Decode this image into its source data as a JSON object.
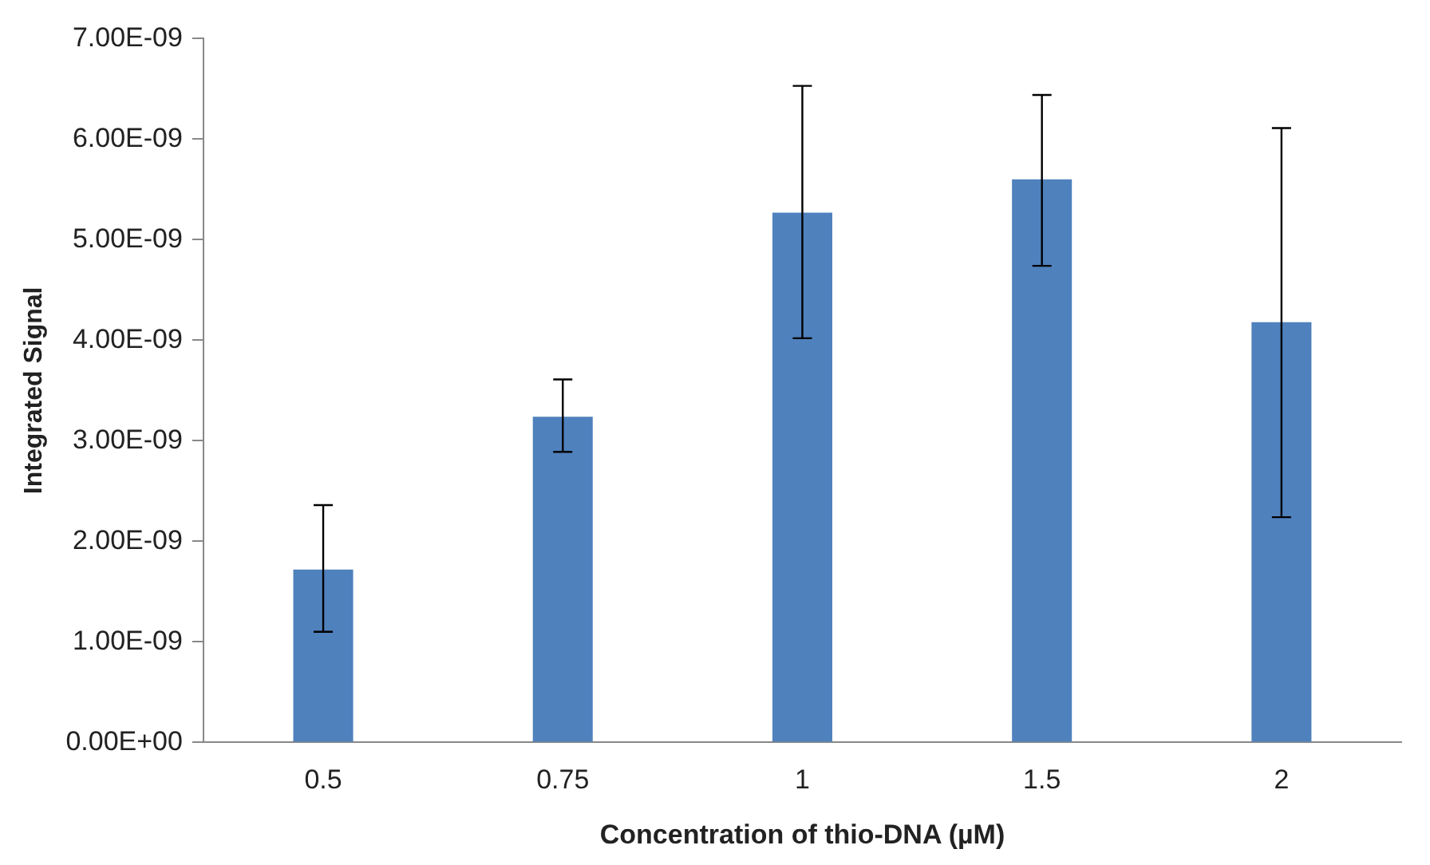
{
  "chart_data": {
    "type": "bar",
    "xlabel": "Concentration of thio-DNA (µM)",
    "ylabel": "Integrated Signal",
    "categories": [
      "0.5",
      "0.75",
      "1",
      "1.5",
      "2"
    ],
    "series": [
      {
        "color": "#4f81bd",
        "values": [
          1.72e-09,
          3.24e-09,
          5.27e-09,
          5.6e-09,
          4.18e-09
        ],
        "errors": [
          [
            1.1e-09,
            2.36e-09
          ],
          [
            2.89e-09,
            3.61e-09
          ],
          [
            4.02e-09,
            6.53e-09
          ],
          [
            4.74e-09,
            6.44e-09
          ],
          [
            2.24e-09,
            6.11e-09
          ]
        ]
      }
    ],
    "ylim": [
      0,
      7e-09
    ],
    "yticks": [
      {
        "value": 0,
        "label": "0.00E+00"
      },
      {
        "value": 1e-09,
        "label": "1.00E-09"
      },
      {
        "value": 2e-09,
        "label": "2.00E-09"
      },
      {
        "value": 3e-09,
        "label": "3.00E-09"
      },
      {
        "value": 4e-09,
        "label": "4.00E-09"
      },
      {
        "value": 5e-09,
        "label": "5.00E-09"
      },
      {
        "value": 6e-09,
        "label": "6.00E-09"
      },
      {
        "value": 7e-09,
        "label": "7.00E-09"
      }
    ],
    "grid": false,
    "legend": false
  }
}
